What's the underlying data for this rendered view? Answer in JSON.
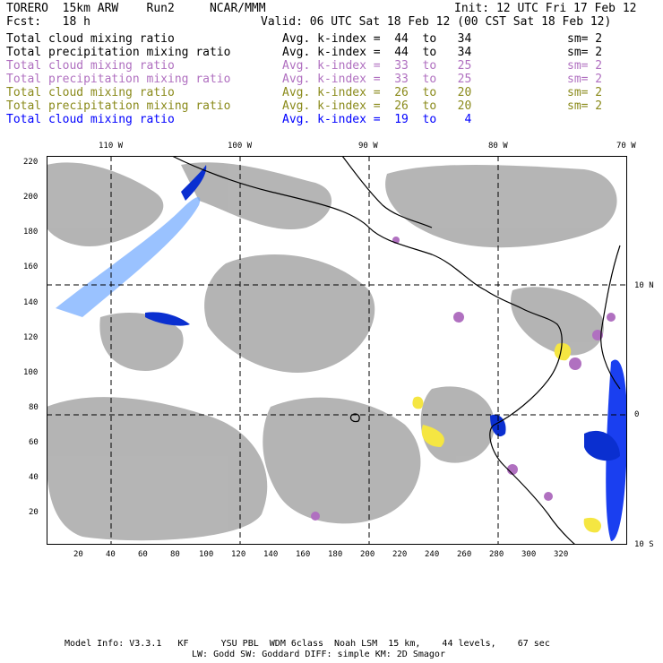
{
  "header": {
    "line1_left": "TORERO  15km ARW    Run2     NCAR/MMM",
    "line1_right": "Init: 12 UTC Fri 17 Feb 12",
    "line2_left": "Fcst:   18 h",
    "line2_right": "Valid: 06 UTC Sat 18 Feb 12 (00 CST Sat 18 Feb 12)"
  },
  "legend": [
    {
      "name": "Total cloud mixing ratio",
      "avg": "Avg. k-index =  44  to   34",
      "sm": "sm= 2",
      "color": "#000000"
    },
    {
      "name": "Total precipitation mixing ratio",
      "avg": "Avg. k-index =  44  to   34",
      "sm": "sm= 2",
      "color": "#000000"
    },
    {
      "name": "Total cloud mixing ratio",
      "avg": "Avg. k-index =  33  to   25",
      "sm": "sm= 2",
      "color": "#b070c0"
    },
    {
      "name": "Total precipitation mixing ratio",
      "avg": "Avg. k-index =  33  to   25",
      "sm": "sm= 2",
      "color": "#b070c0"
    },
    {
      "name": "Total cloud mixing ratio",
      "avg": "Avg. k-index =  26  to   20",
      "sm": "sm= 2",
      "color": "#8a8a1a"
    },
    {
      "name": "Total precipitation mixing ratio",
      "avg": "Avg. k-index =  26  to   20",
      "sm": "sm= 2",
      "color": "#8a8a1a"
    },
    {
      "name": "Total cloud mixing ratio",
      "avg": "Avg. k-index =  19  to    4",
      "sm": "",
      "color": "#0000ff"
    }
  ],
  "top_axis": [
    "110 W",
    "100 W",
    "90 W",
    "80 W",
    "70 W"
  ],
  "right_axis": [
    "10 N",
    "0",
    "10 S"
  ],
  "x_axis": [
    "20",
    "40",
    "60",
    "80",
    "100",
    "120",
    "140",
    "160",
    "180",
    "200",
    "220",
    "240",
    "260",
    "280",
    "300",
    "320"
  ],
  "y_axis": [
    "220",
    "200",
    "180",
    "160",
    "140",
    "120",
    "100",
    "80",
    "60",
    "40",
    "20"
  ],
  "footer": {
    "line1": "Model Info: V3.3.1   KF      YSU PBL  WDM 6class  Noah LSM  15 km,    44 levels,    67 sec",
    "line2": "LW: Godd SW: Goddard DIFF: simple KM: 2D Smagor"
  }
}
